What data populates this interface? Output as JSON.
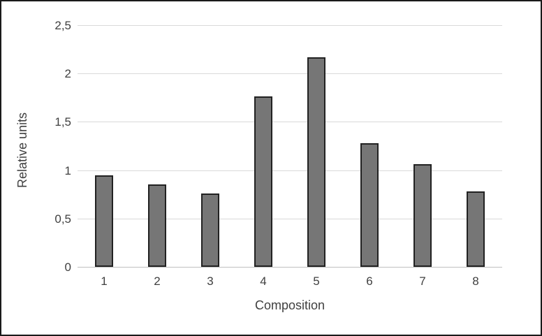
{
  "chart_data": {
    "type": "bar",
    "title": "",
    "xlabel": "Composition",
    "ylabel": "Relative units",
    "categories": [
      "1",
      "2",
      "3",
      "4",
      "5",
      "6",
      "7",
      "8"
    ],
    "values": [
      0.95,
      0.85,
      0.76,
      1.76,
      2.17,
      1.28,
      1.06,
      0.78
    ],
    "ylim": [
      0,
      2.5
    ],
    "ytick_interval": 0.5,
    "yticks": [
      {
        "value": 0,
        "label": "0"
      },
      {
        "value": 0.5,
        "label": "0,5"
      },
      {
        "value": 1,
        "label": "1"
      },
      {
        "value": 1.5,
        "label": "1,5"
      },
      {
        "value": 2,
        "label": "2"
      },
      {
        "value": 2.5,
        "label": "2,5"
      }
    ],
    "grid": "horizontal",
    "legend": "none",
    "colors": {
      "bar_fill": "#767676",
      "bar_border": "#222222",
      "gridline": "#d9d9d9",
      "axis_line": "#bfbfbf",
      "text": "#404040",
      "frame_border": "#1a1a1a",
      "background": "#ffffff"
    }
  }
}
